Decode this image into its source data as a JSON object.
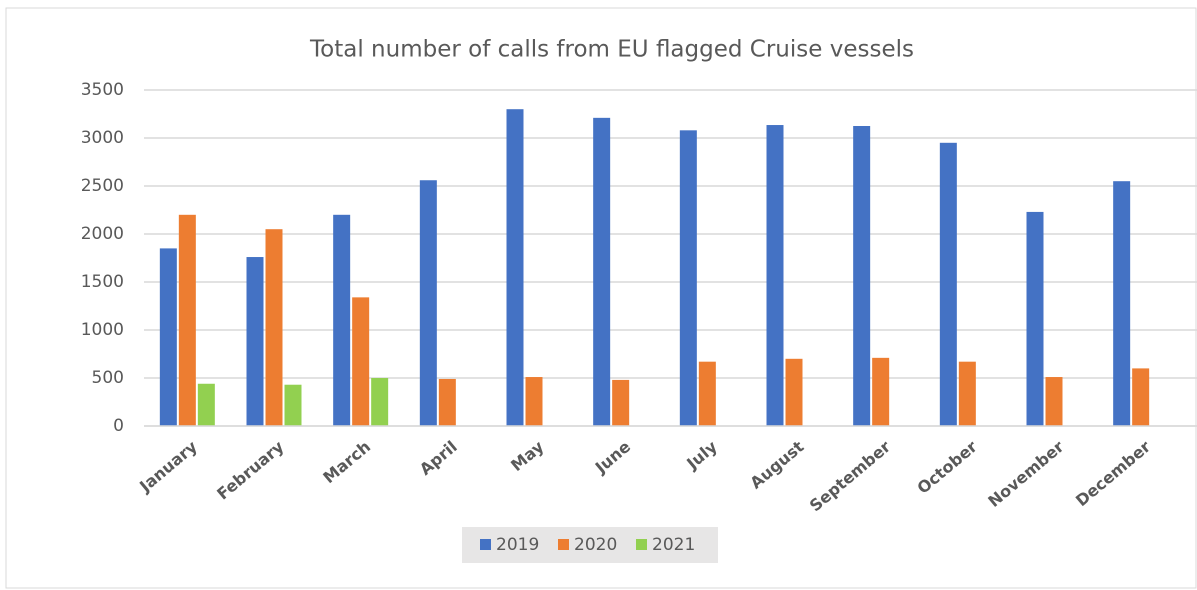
{
  "chart_data": {
    "type": "bar",
    "title": "Total number of calls from EU flagged Cruise vessels",
    "categories": [
      "January",
      "February",
      "March",
      "April",
      "May",
      "June",
      "July",
      "August",
      "September",
      "October",
      "November",
      "December"
    ],
    "series": [
      {
        "name": "2019",
        "color": "#4472c4",
        "values": [
          1850,
          1760,
          2200,
          2560,
          3300,
          3210,
          3080,
          3135,
          3125,
          2950,
          2230,
          2550
        ]
      },
      {
        "name": "2020",
        "color": "#ed7d31",
        "values": [
          2200,
          2050,
          1340,
          490,
          510,
          480,
          670,
          700,
          710,
          670,
          510,
          600
        ]
      },
      {
        "name": "2021",
        "color": "#92d050",
        "values": [
          440,
          430,
          500,
          null,
          null,
          null,
          null,
          null,
          null,
          null,
          null,
          null
        ]
      }
    ],
    "ylim": [
      0,
      3500
    ],
    "yticks": [
      0,
      500,
      1000,
      1500,
      2000,
      2500,
      3000,
      3500
    ],
    "grid": true,
    "legend": "bottom"
  }
}
